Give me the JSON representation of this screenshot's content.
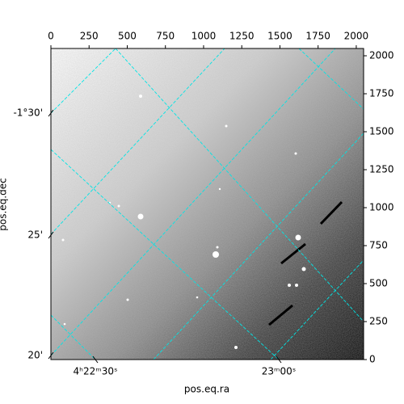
{
  "chart_data": {
    "type": "image",
    "xlabel": "pos.eq.ra",
    "ylabel": "pos.eq.dec",
    "xlim": [
      0,
      2048
    ],
    "ylim": [
      0,
      2048
    ],
    "xticks": [
      0,
      250,
      500,
      750,
      1000,
      1250,
      1500,
      1750,
      2000
    ],
    "yticks": [
      0,
      250,
      500,
      750,
      1000,
      1250,
      1500,
      1750,
      2000
    ],
    "ra_tick_labels": [
      "4ʰ22ᵐ30ˢ",
      "23ᵐ00ˢ"
    ],
    "dec_tick_labels": [
      "-1°30'",
      "25'",
      "20'"
    ],
    "cmap": "gray",
    "grid_color": "#00e5e5"
  }
}
